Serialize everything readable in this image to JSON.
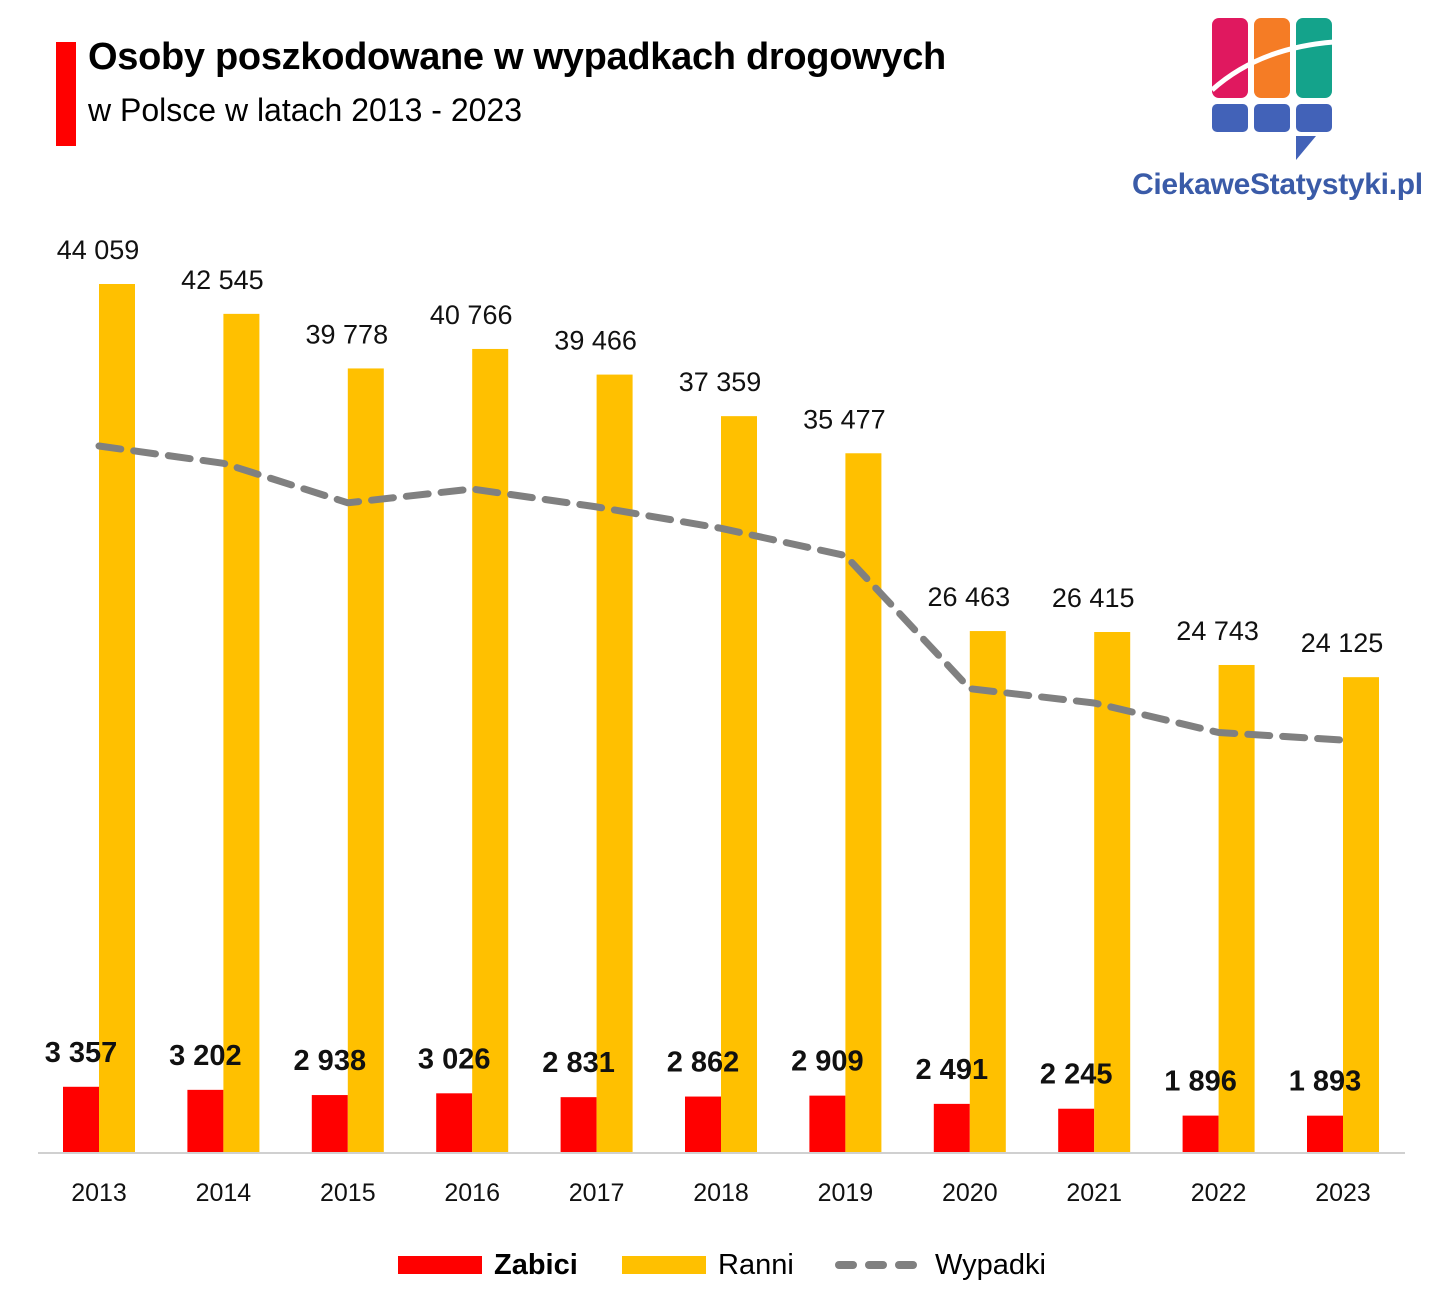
{
  "header": {
    "title": "Osoby poszkodowane w wypadkach drogowych",
    "subtitle": "w Polsce w latach 2013 - 2023",
    "accent_color": "#ff0000"
  },
  "logo": {
    "text": "CiekaweStatystyki.pl",
    "colors": [
      "#e0185f",
      "#f57c25",
      "#14a38b",
      "#4262b8"
    ],
    "text_color": "#3a5ba8"
  },
  "chart_data": {
    "type": "bar",
    "title": "Osoby poszkodowane w wypadkach drogowych",
    "subtitle": "w Polsce w latach 2013 - 2023",
    "xlabel": "",
    "ylabel": "",
    "categories": [
      "2013",
      "2014",
      "2015",
      "2016",
      "2017",
      "2018",
      "2019",
      "2020",
      "2021",
      "2022",
      "2023"
    ],
    "series": [
      {
        "name": "Zabici",
        "type": "bar",
        "color": "#ff0000",
        "values": [
          3357,
          3202,
          2938,
          3026,
          2831,
          2862,
          2909,
          2491,
          2245,
          1896,
          1893
        ],
        "labels": [
          "3 357",
          "3 202",
          "2 938",
          "3 026",
          "2 831",
          "2 862",
          "2 909",
          "2 491",
          "2 245",
          "1 896",
          "1 893"
        ]
      },
      {
        "name": "Ranni",
        "type": "bar",
        "color": "#ffc000",
        "values": [
          44059,
          42545,
          39778,
          40766,
          39466,
          37359,
          35477,
          26463,
          26415,
          24743,
          24125
        ],
        "labels": [
          "44 059",
          "42 545",
          "39 778",
          "40 766",
          "39 466",
          "37 359",
          "35 477",
          "26 463",
          "26 415",
          "24 743",
          "24 125"
        ]
      },
      {
        "name": "Wypadki",
        "type": "line",
        "style": "dashed",
        "color": "#808080",
        "values": [
          35847,
          34970,
          32967,
          33664,
          32760,
          31674,
          30288,
          23540,
          22816,
          21322,
          20936
        ],
        "labels_shown": false,
        "values_estimated": true
      }
    ],
    "ylim": [
      0,
      45000
    ],
    "y_axis_visible": false,
    "grid": false,
    "legend": {
      "position": "bottom",
      "items": [
        {
          "label": "Zabici",
          "bold": true
        },
        {
          "label": "Ranni",
          "bold": false
        },
        {
          "label": "Wypadki",
          "bold": false
        }
      ]
    }
  }
}
